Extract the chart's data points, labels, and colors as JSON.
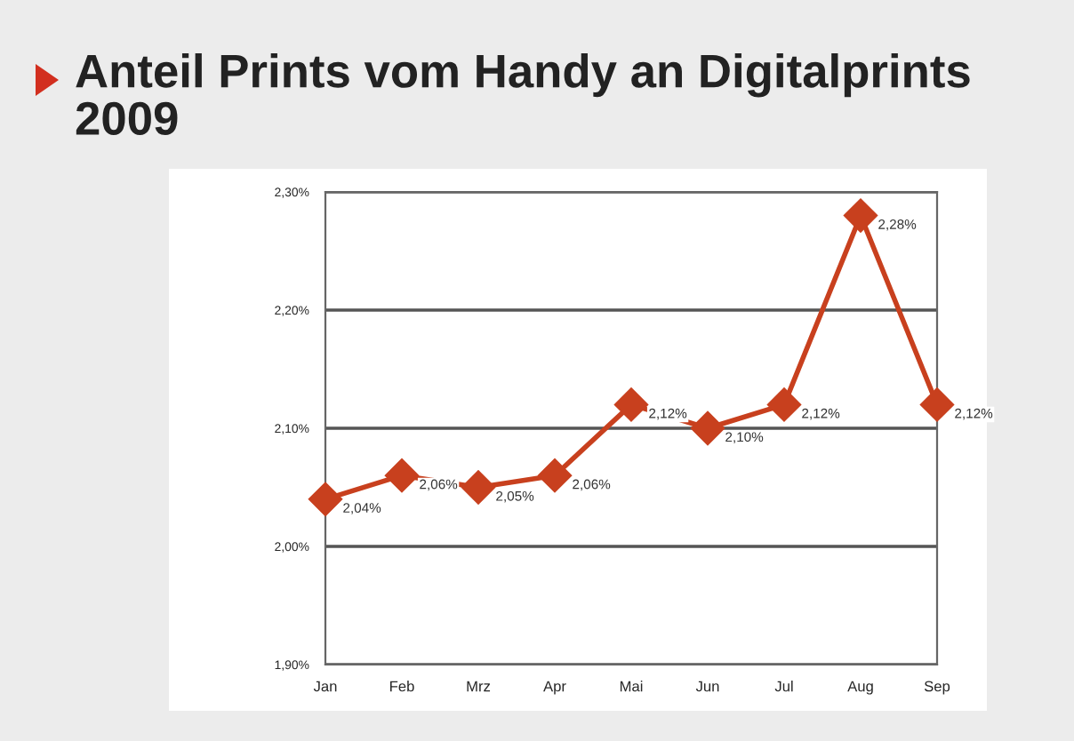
{
  "chart_data": {
    "type": "line",
    "title": "Anteil Prints vom Handy an Digitalprints\n2009",
    "categories": [
      "Jan",
      "Feb",
      "Mrz",
      "Apr",
      "Mai",
      "Jun",
      "Jul",
      "Aug",
      "Sep"
    ],
    "series": [
      {
        "color": "#c8401e",
        "values": [
          2.04,
          2.06,
          2.05,
          2.06,
          2.12,
          2.1,
          2.12,
          2.28,
          2.12
        ]
      }
    ],
    "ylim": [
      1.9,
      2.3
    ],
    "yticks": [
      {
        "value": 1.9,
        "label": "1,90%"
      },
      {
        "value": 2.0,
        "label": "2,00%"
      },
      {
        "value": 2.1,
        "label": "2,10%"
      },
      {
        "value": 2.2,
        "label": "2,20%"
      },
      {
        "value": 2.3,
        "label": "2,30%"
      }
    ],
    "value_labels": [
      "2,04%",
      "2,06%",
      "2,05%",
      "2,06%",
      "2,12%",
      "2,10%",
      "2,12%",
      "2,28%",
      "2,12%"
    ],
    "grid": "y",
    "marker": "diamond",
    "line_style": "solid"
  }
}
